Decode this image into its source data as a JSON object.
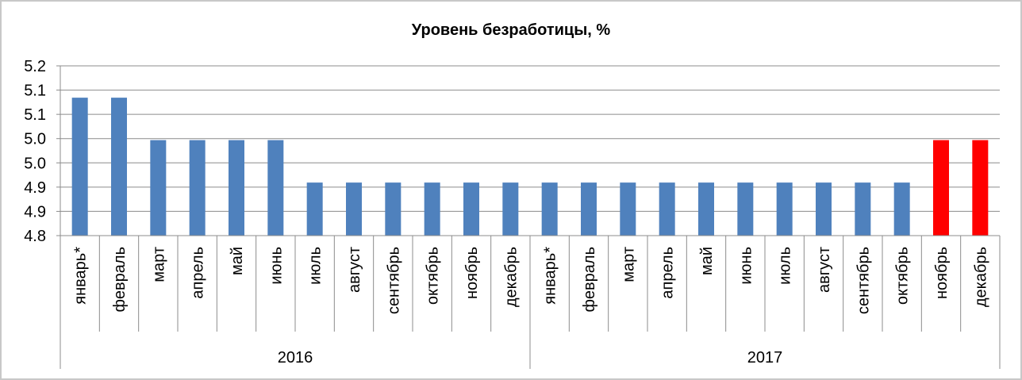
{
  "chart_data": {
    "type": "bar",
    "title": "Уровень безработицы, %",
    "xlabel": "",
    "ylabel": "",
    "ylim": [
      4.8,
      5.2
    ],
    "y_ticks": [
      "5.2",
      "5.1",
      "5.1",
      "5.0",
      "5.0",
      "4.9",
      "4.9",
      "4.8"
    ],
    "groups": [
      {
        "label": "2016",
        "count": 12
      },
      {
        "label": "2017",
        "count": 12
      }
    ],
    "categories": [
      "январь*",
      "февраль",
      "март",
      "апрель",
      "май",
      "июнь",
      "июль",
      "август",
      "сентябрь",
      "октябрь",
      "ноябрь",
      "декабрь",
      "январь*",
      "февраль",
      "март",
      "апрель",
      "май",
      "июнь",
      "июль",
      "август",
      "сентябрь",
      "октябрь",
      "ноябрь",
      "декабрь"
    ],
    "values": [
      5.1,
      5.1,
      5.0,
      5.0,
      5.0,
      5.0,
      4.9,
      4.9,
      4.9,
      4.9,
      4.9,
      4.9,
      4.9,
      4.9,
      4.9,
      4.9,
      4.9,
      4.9,
      4.9,
      4.9,
      4.9,
      4.9,
      5.0,
      5.0
    ],
    "plotted_values": [
      5.125,
      5.125,
      5.025,
      5.025,
      5.025,
      5.025,
      4.925,
      4.925,
      4.925,
      4.925,
      4.925,
      4.925,
      4.925,
      4.925,
      4.925,
      4.925,
      4.925,
      4.925,
      4.925,
      4.925,
      4.925,
      4.925,
      5.025,
      5.025
    ],
    "colors": [
      "#4f81bd",
      "#4f81bd",
      "#4f81bd",
      "#4f81bd",
      "#4f81bd",
      "#4f81bd",
      "#4f81bd",
      "#4f81bd",
      "#4f81bd",
      "#4f81bd",
      "#4f81bd",
      "#4f81bd",
      "#4f81bd",
      "#4f81bd",
      "#4f81bd",
      "#4f81bd",
      "#4f81bd",
      "#4f81bd",
      "#4f81bd",
      "#4f81bd",
      "#4f81bd",
      "#4f81bd",
      "#ff0000",
      "#ff0000"
    ],
    "grid": true,
    "legend": "none"
  }
}
